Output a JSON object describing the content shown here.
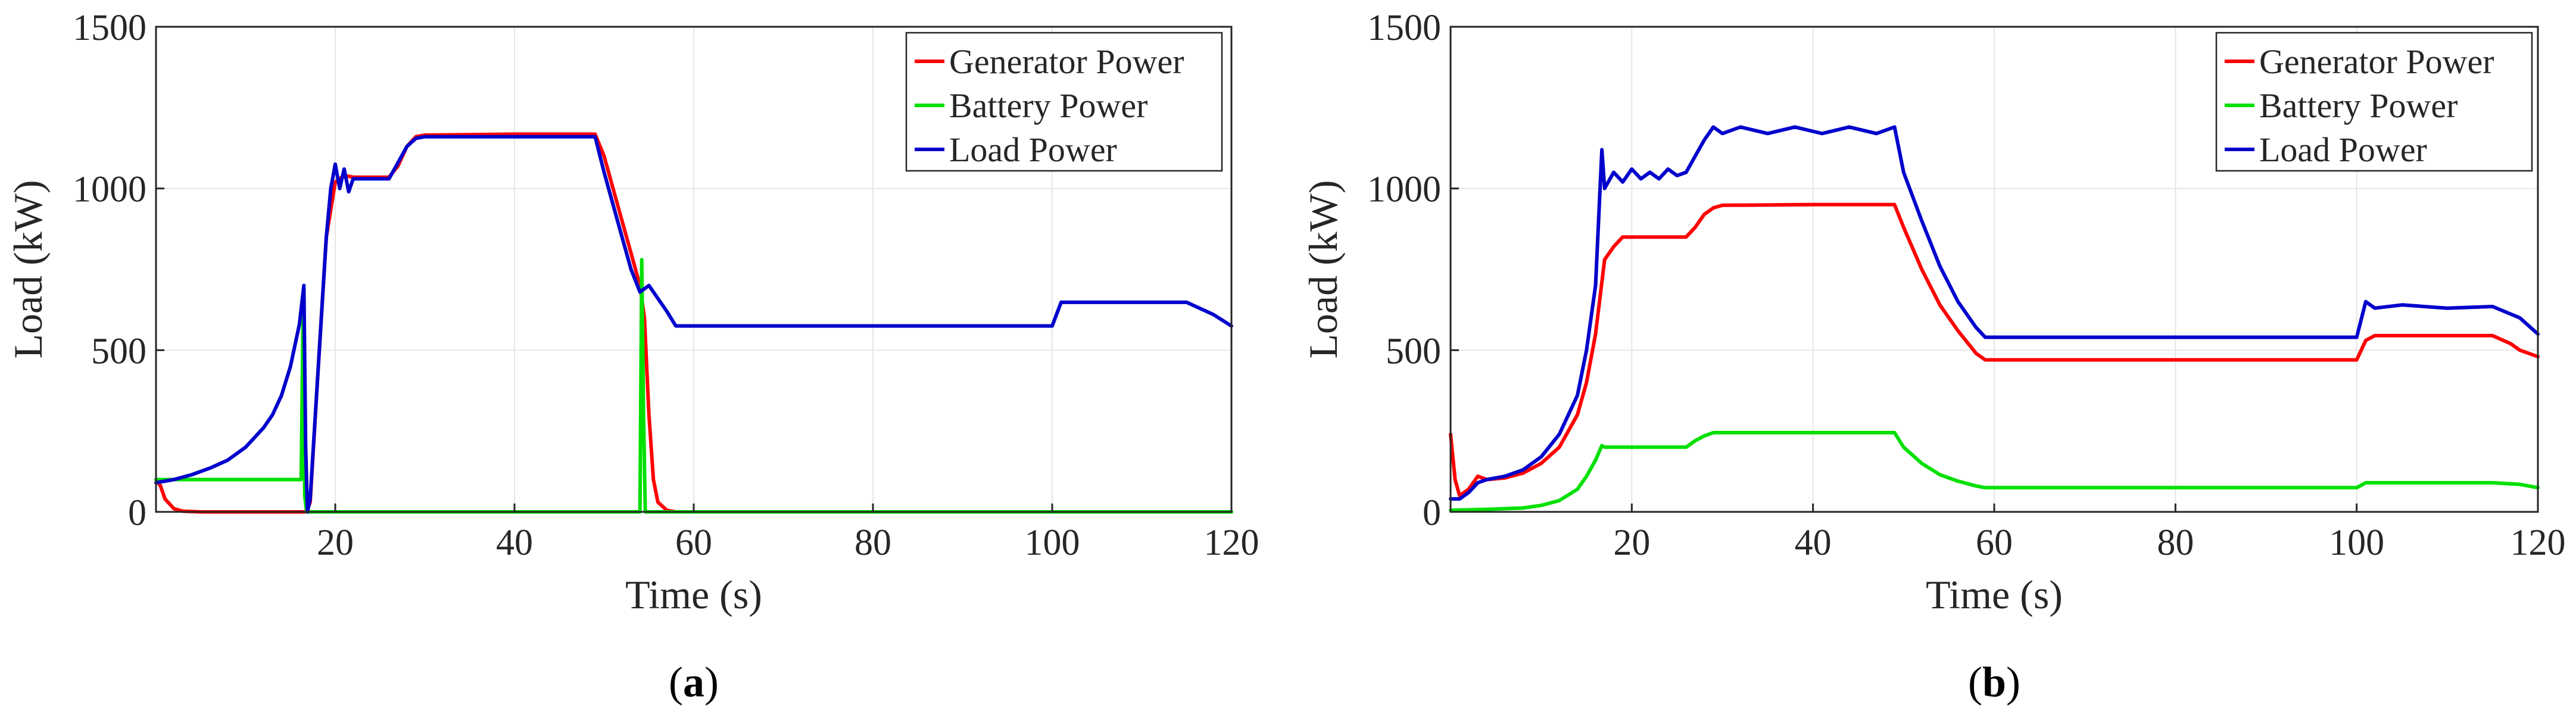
{
  "chart_data": [
    {
      "id": "a",
      "type": "line",
      "panel_label": "a",
      "xlabel": "Time (s)",
      "ylabel": "Load (kW)",
      "xlim": [
        0,
        120
      ],
      "ylim": [
        0,
        1500
      ],
      "xticks": [
        20,
        40,
        60,
        80,
        100,
        120
      ],
      "yticks": [
        0,
        500,
        1000,
        1500
      ],
      "grid": true,
      "legend_position": "top-right",
      "series": [
        {
          "name": "Generator Power",
          "color": "#ff0000",
          "points": [
            [
              0,
              100
            ],
            [
              0.5,
              80
            ],
            [
              1,
              40
            ],
            [
              2,
              10
            ],
            [
              3,
              2
            ],
            [
              5,
              0
            ],
            [
              10,
              0
            ],
            [
              16,
              0
            ],
            [
              16.8,
              0
            ],
            [
              17.2,
              30
            ],
            [
              18,
              400
            ],
            [
              19,
              850
            ],
            [
              20,
              1020
            ],
            [
              21,
              1040
            ],
            [
              22,
              1035
            ],
            [
              26,
              1035
            ],
            [
              27,
              1070
            ],
            [
              28,
              1130
            ],
            [
              29,
              1160
            ],
            [
              30,
              1165
            ],
            [
              40,
              1168
            ],
            [
              49,
              1168
            ],
            [
              50,
              1100
            ],
            [
              51,
              1000
            ],
            [
              52,
              900
            ],
            [
              53,
              800
            ],
            [
              54,
              700
            ],
            [
              54.5,
              600
            ],
            [
              55,
              300
            ],
            [
              55.5,
              100
            ],
            [
              56,
              30
            ],
            [
              57,
              5
            ],
            [
              58,
              0
            ],
            [
              80,
              0
            ],
            [
              100,
              0
            ],
            [
              120,
              0
            ]
          ]
        },
        {
          "name": "Battery Power",
          "color": "#00e000",
          "points": [
            [
              0,
              100
            ],
            [
              16.2,
              100
            ],
            [
              16.4,
              600
            ],
            [
              16.6,
              50
            ],
            [
              16.8,
              0
            ],
            [
              17,
              0
            ],
            [
              30,
              0
            ],
            [
              54,
              0
            ],
            [
              54.2,
              780
            ],
            [
              54.4,
              300
            ],
            [
              54.6,
              0
            ],
            [
              60,
              0
            ],
            [
              100,
              0
            ],
            [
              120,
              0
            ]
          ]
        },
        {
          "name": "Load Power",
          "color": "#0000cc",
          "points": [
            [
              0,
              90
            ],
            [
              2,
              100
            ],
            [
              4,
              115
            ],
            [
              6,
              135
            ],
            [
              8,
              160
            ],
            [
              10,
              200
            ],
            [
              12,
              260
            ],
            [
              13,
              300
            ],
            [
              14,
              360
            ],
            [
              15,
              450
            ],
            [
              16,
              580
            ],
            [
              16.5,
              700
            ],
            [
              16.7,
              200
            ],
            [
              16.9,
              0
            ],
            [
              17.2,
              40
            ],
            [
              18,
              400
            ],
            [
              19,
              850
            ],
            [
              19.5,
              1000
            ],
            [
              20,
              1075
            ],
            [
              20.5,
              1000
            ],
            [
              21,
              1060
            ],
            [
              21.5,
              990
            ],
            [
              22,
              1030
            ],
            [
              26,
              1030
            ],
            [
              27,
              1080
            ],
            [
              28,
              1130
            ],
            [
              29,
              1155
            ],
            [
              30,
              1160
            ],
            [
              40,
              1160
            ],
            [
              49,
              1160
            ],
            [
              50,
              1050
            ],
            [
              51,
              950
            ],
            [
              52,
              850
            ],
            [
              53,
              750
            ],
            [
              54,
              680
            ],
            [
              55,
              700
            ],
            [
              56,
              660
            ],
            [
              57,
              620
            ],
            [
              58,
              575
            ],
            [
              80,
              575
            ],
            [
              100,
              575
            ],
            [
              101,
              648
            ],
            [
              115,
              648
            ],
            [
              118,
              610
            ],
            [
              120,
              575
            ]
          ]
        }
      ]
    },
    {
      "id": "b",
      "type": "line",
      "panel_label": "b",
      "xlabel": "Time (s)",
      "ylabel": "Load (kW)",
      "xlim": [
        0,
        120
      ],
      "ylim": [
        0,
        1500
      ],
      "xticks": [
        20,
        40,
        60,
        80,
        100,
        120
      ],
      "yticks": [
        0,
        500,
        1000,
        1500
      ],
      "grid": true,
      "legend_position": "top-right",
      "series": [
        {
          "name": "Generator Power",
          "color": "#ff0000",
          "points": [
            [
              0,
              240
            ],
            [
              0.5,
              100
            ],
            [
              1,
              50
            ],
            [
              2,
              70
            ],
            [
              3,
              110
            ],
            [
              4,
              100
            ],
            [
              6,
              105
            ],
            [
              8,
              120
            ],
            [
              10,
              150
            ],
            [
              12,
              200
            ],
            [
              14,
              300
            ],
            [
              15,
              400
            ],
            [
              16,
              550
            ],
            [
              17,
              780
            ],
            [
              18,
              820
            ],
            [
              19,
              850
            ],
            [
              26,
              850
            ],
            [
              27,
              880
            ],
            [
              28,
              920
            ],
            [
              29,
              940
            ],
            [
              30,
              948
            ],
            [
              40,
              950
            ],
            [
              49,
              950
            ],
            [
              50,
              880
            ],
            [
              52,
              750
            ],
            [
              54,
              640
            ],
            [
              56,
              560
            ],
            [
              58,
              490
            ],
            [
              59,
              470
            ],
            [
              80,
              470
            ],
            [
              100,
              470
            ],
            [
              101,
              530
            ],
            [
              102,
              545
            ],
            [
              115,
              545
            ],
            [
              117,
              520
            ],
            [
              118,
              500
            ],
            [
              120,
              480
            ]
          ]
        },
        {
          "name": "Battery Power",
          "color": "#00e000",
          "points": [
            [
              0,
              5
            ],
            [
              4,
              8
            ],
            [
              8,
              12
            ],
            [
              10,
              20
            ],
            [
              12,
              35
            ],
            [
              14,
              70
            ],
            [
              15,
              110
            ],
            [
              16,
              160
            ],
            [
              16.7,
              205
            ],
            [
              17,
              200
            ],
            [
              20,
              200
            ],
            [
              26,
              200
            ],
            [
              27,
              220
            ],
            [
              28,
              235
            ],
            [
              29,
              245
            ],
            [
              30,
              245
            ],
            [
              40,
              245
            ],
            [
              49,
              245
            ],
            [
              50,
              200
            ],
            [
              52,
              150
            ],
            [
              54,
              115
            ],
            [
              56,
              95
            ],
            [
              58,
              80
            ],
            [
              59,
              75
            ],
            [
              80,
              75
            ],
            [
              100,
              75
            ],
            [
              101,
              90
            ],
            [
              115,
              90
            ],
            [
              118,
              85
            ],
            [
              120,
              75
            ]
          ]
        },
        {
          "name": "Load Power",
          "color": "#0000cc",
          "points": [
            [
              0,
              40
            ],
            [
              1,
              40
            ],
            [
              2,
              60
            ],
            [
              3,
              90
            ],
            [
              4,
              100
            ],
            [
              6,
              110
            ],
            [
              8,
              130
            ],
            [
              10,
              170
            ],
            [
              12,
              240
            ],
            [
              14,
              360
            ],
            [
              15,
              500
            ],
            [
              16,
              700
            ],
            [
              16.7,
              1120
            ],
            [
              17,
              1000
            ],
            [
              18,
              1050
            ],
            [
              19,
              1020
            ],
            [
              20,
              1060
            ],
            [
              21,
              1030
            ],
            [
              22,
              1050
            ],
            [
              23,
              1030
            ],
            [
              24,
              1060
            ],
            [
              25,
              1040
            ],
            [
              26,
              1050
            ],
            [
              27,
              1100
            ],
            [
              28,
              1150
            ],
            [
              29,
              1190
            ],
            [
              30,
              1170
            ],
            [
              32,
              1190
            ],
            [
              35,
              1170
            ],
            [
              38,
              1190
            ],
            [
              41,
              1170
            ],
            [
              44,
              1190
            ],
            [
              47,
              1170
            ],
            [
              49,
              1190
            ],
            [
              50,
              1050
            ],
            [
              52,
              900
            ],
            [
              54,
              760
            ],
            [
              56,
              650
            ],
            [
              58,
              570
            ],
            [
              59,
              540
            ],
            [
              80,
              540
            ],
            [
              100,
              540
            ],
            [
              101,
              650
            ],
            [
              102,
              630
            ],
            [
              105,
              640
            ],
            [
              110,
              630
            ],
            [
              115,
              635
            ],
            [
              118,
              600
            ],
            [
              120,
              550
            ]
          ]
        }
      ]
    }
  ]
}
